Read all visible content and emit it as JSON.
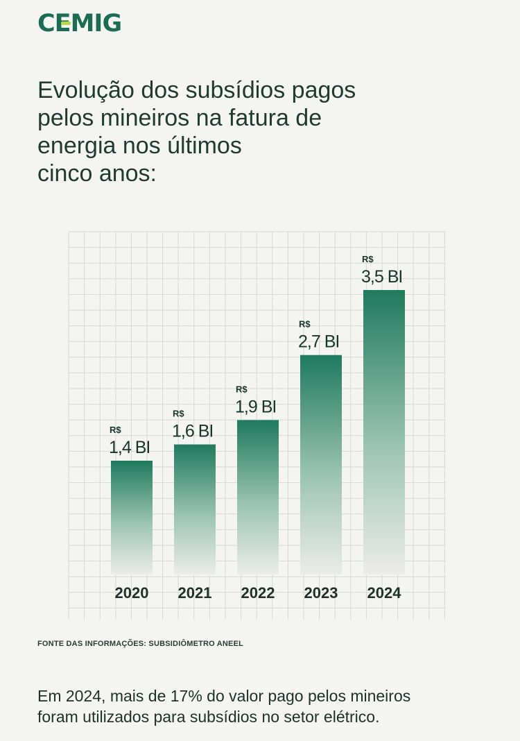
{
  "brand": {
    "name": "CEMIG"
  },
  "headline": {
    "lines": [
      "Evolução dos subsídios pagos",
      "pelos mineiros na fatura de",
      "energia nos últimos",
      "cinco anos:"
    ]
  },
  "chart_data": {
    "type": "bar",
    "categories": [
      "2020",
      "2021",
      "2022",
      "2023",
      "2024"
    ],
    "values": [
      1.4,
      1.6,
      1.9,
      2.7,
      3.5
    ],
    "value_prefix": "R$",
    "value_labels": [
      "1,4 BI",
      "1,6 BI",
      "1,9 BI",
      "2,7 BI",
      "3,5 BI"
    ],
    "ylim": [
      0,
      3.5
    ],
    "grid": true,
    "colors": {
      "bar_top": "#1f7a5e",
      "bar_bottom": "#ececea",
      "grid": "#d6d8d4"
    }
  },
  "source": "FONTE DAS INFORMAÇÕES: SUBSIDIÔMETRO ANEEL",
  "footnote": {
    "lines": [
      "Em 2024, mais de 17% do valor pago pelos mineiros",
      "foram utilizados para subsídios no setor elétrico."
    ]
  }
}
